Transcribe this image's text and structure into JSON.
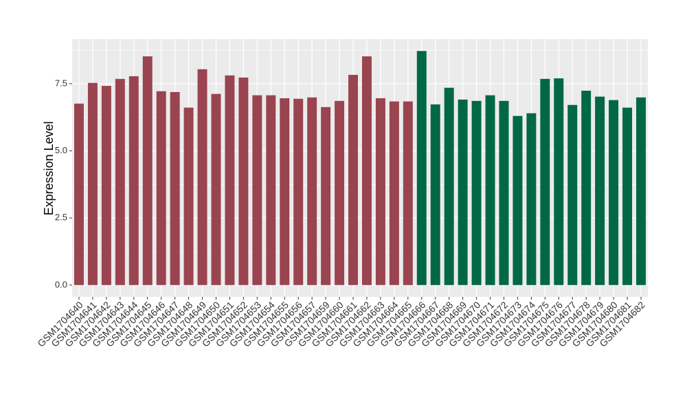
{
  "chart_data": {
    "type": "bar",
    "ylabel": "Expression Level",
    "categories": [
      "GSM1704640",
      "GSM1704641",
      "GSM1704642",
      "GSM1704643",
      "GSM1704644",
      "GSM1704645",
      "GSM1704646",
      "GSM1704647",
      "GSM1704648",
      "GSM1704649",
      "GSM1704650",
      "GSM1704651",
      "GSM1704652",
      "GSM1704653",
      "GSM1704654",
      "GSM1704655",
      "GSM1704656",
      "GSM1704657",
      "GSM1704659",
      "GSM1704660",
      "GSM1704661",
      "GSM1704662",
      "GSM1704663",
      "GSM1704664",
      "GSM1704665",
      "GSM1704666",
      "GSM1704667",
      "GSM1704668",
      "GSM1704669",
      "GSM1704670",
      "GSM1704671",
      "GSM1704672",
      "GSM1704673",
      "GSM1704674",
      "GSM1704675",
      "GSM1704676",
      "GSM1704677",
      "GSM1704678",
      "GSM1704679",
      "GSM1704680",
      "GSM1704681",
      "GSM1704682"
    ],
    "values": [
      6.76,
      7.53,
      7.42,
      7.68,
      7.78,
      8.52,
      7.22,
      7.19,
      6.61,
      8.04,
      7.12,
      7.81,
      7.73,
      7.07,
      7.07,
      6.96,
      6.94,
      6.99,
      6.63,
      6.86,
      7.83,
      8.52,
      6.96,
      6.84,
      6.84,
      8.72,
      6.73,
      7.35,
      6.91,
      6.86,
      7.07,
      6.86,
      6.3,
      6.4,
      7.68,
      7.7,
      6.71,
      7.24,
      7.02,
      6.89,
      6.61,
      6.99
    ],
    "colors": [
      "#9a4450",
      "#9a4450",
      "#9a4450",
      "#9a4450",
      "#9a4450",
      "#9a4450",
      "#9a4450",
      "#9a4450",
      "#9a4450",
      "#9a4450",
      "#9a4450",
      "#9a4450",
      "#9a4450",
      "#9a4450",
      "#9a4450",
      "#9a4450",
      "#9a4450",
      "#9a4450",
      "#9a4450",
      "#9a4450",
      "#9a4450",
      "#9a4450",
      "#9a4450",
      "#9a4450",
      "#9a4450",
      "#006846",
      "#006846",
      "#006846",
      "#006846",
      "#006846",
      "#006846",
      "#006846",
      "#006846",
      "#006846",
      "#006846",
      "#006846",
      "#006846",
      "#006846",
      "#006846",
      "#006846",
      "#006846",
      "#006846"
    ],
    "ylim": [
      -0.44,
      9.16
    ],
    "yticks": [
      {
        "value": 0,
        "label": "0.0"
      },
      2.5,
      {
        "value": 5,
        "label": "5.0"
      },
      7.5
    ],
    "minor_yticks": [
      1.25,
      3.75,
      6.25,
      8.75
    ],
    "grid": true
  }
}
